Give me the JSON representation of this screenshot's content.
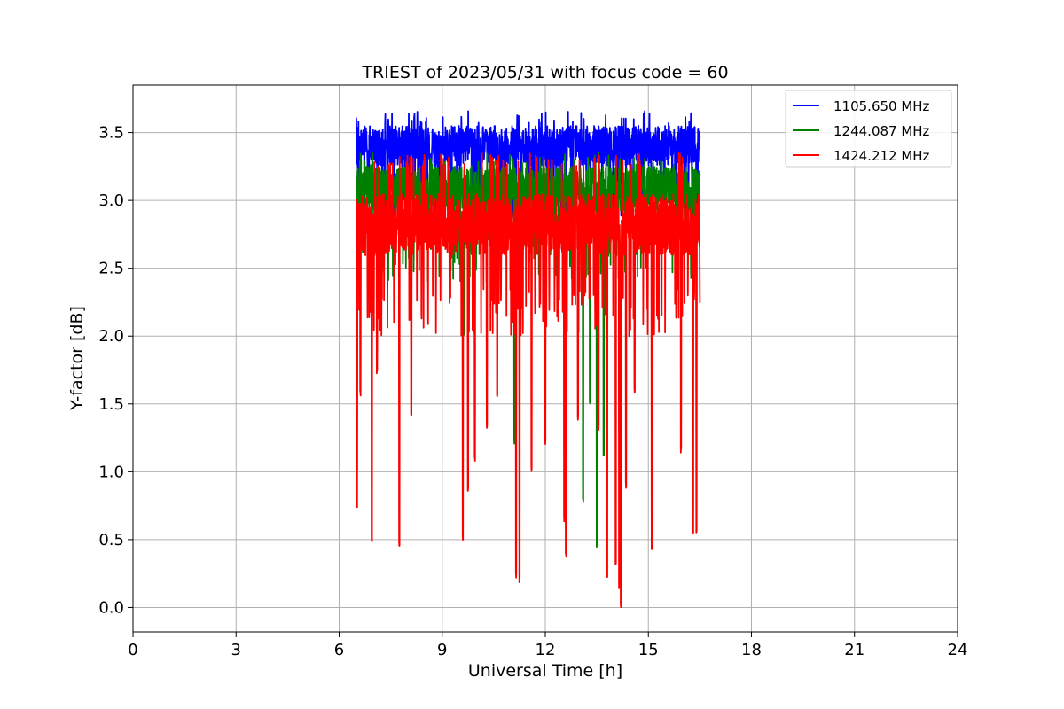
{
  "chart_data": {
    "type": "line",
    "title": "TRIEST of 2023/05/31 with focus code = 60",
    "xlabel": "Universal Time [h]",
    "ylabel": "Y-factor [dB]",
    "xlim": [
      0,
      24
    ],
    "ylim": [
      -0.18,
      3.85
    ],
    "xticks": [
      0,
      3,
      6,
      9,
      12,
      15,
      18,
      21,
      24
    ],
    "yticks": [
      0.0,
      0.5,
      1.0,
      1.5,
      2.0,
      2.5,
      3.0,
      3.5
    ],
    "ytick_labels": [
      "0.0",
      "0.5",
      "1.0",
      "1.5",
      "2.0",
      "2.5",
      "3.0",
      "3.5"
    ],
    "grid": true,
    "legend_position": "top-right",
    "data_range_hours": [
      6.5,
      16.5
    ],
    "series": [
      {
        "name": "1105.650 MHz",
        "color": "#0000ff",
        "band": [
          3.1,
          3.55
        ],
        "approx_max": 3.66,
        "dips": [
          [
            6.55,
            2.4
          ],
          [
            8.3,
            2.9
          ],
          [
            9.9,
            2.6
          ],
          [
            10.1,
            2.9
          ],
          [
            12.6,
            2.8
          ],
          [
            14.1,
            2.7
          ],
          [
            14.7,
            2.95
          ],
          [
            15.8,
            2.9
          ],
          [
            16.4,
            2.8
          ]
        ]
      },
      {
        "name": "1244.087 MHz",
        "color": "#008000",
        "band": [
          2.75,
          3.25
        ],
        "approx_max": 3.35,
        "dips": [
          [
            6.52,
            1.0
          ],
          [
            9.65,
            2.0
          ],
          [
            11.1,
            1.2
          ],
          [
            13.1,
            0.77
          ],
          [
            13.3,
            1.48
          ],
          [
            13.5,
            0.44
          ],
          [
            13.7,
            1.1
          ],
          [
            15.1,
            2.4
          ]
        ]
      },
      {
        "name": "1424.212 MHz",
        "color": "#ff0000",
        "band": [
          2.35,
          3.05
        ],
        "approx_max": 3.35,
        "dips": [
          [
            6.52,
            0.72
          ],
          [
            6.62,
            1.55
          ],
          [
            6.95,
            0.48
          ],
          [
            7.1,
            1.72
          ],
          [
            7.75,
            0.43
          ],
          [
            8.1,
            1.4
          ],
          [
            9.6,
            0.49
          ],
          [
            9.75,
            0.85
          ],
          [
            9.95,
            1.08
          ],
          [
            10.3,
            1.32
          ],
          [
            10.6,
            1.55
          ],
          [
            11.15,
            0.21
          ],
          [
            11.25,
            0.17
          ],
          [
            11.6,
            1.0
          ],
          [
            12.0,
            1.2
          ],
          [
            12.55,
            0.63
          ],
          [
            12.6,
            0.36
          ],
          [
            12.95,
            1.38
          ],
          [
            13.55,
            1.3
          ],
          [
            13.8,
            0.22
          ],
          [
            14.05,
            0.3
          ],
          [
            14.15,
            0.13
          ],
          [
            14.2,
            0.0
          ],
          [
            14.35,
            0.88
          ],
          [
            14.6,
            1.58
          ],
          [
            15.1,
            0.41
          ],
          [
            15.95,
            1.14
          ],
          [
            16.3,
            0.51
          ],
          [
            16.4,
            0.55
          ]
        ]
      }
    ]
  }
}
